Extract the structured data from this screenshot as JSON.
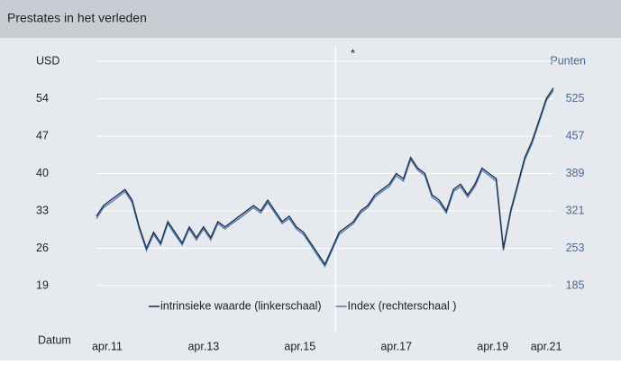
{
  "chart_data": {
    "type": "line",
    "title": "Prestates in het verleden",
    "y_label": "USD",
    "y2_label": "Punten",
    "x_label": "Datum",
    "x": [
      0,
      2,
      4,
      6,
      8,
      10,
      12,
      14,
      16,
      18,
      20,
      22,
      24,
      26,
      28,
      30,
      32,
      34,
      36,
      38,
      40,
      42,
      44,
      46,
      48,
      50,
      52,
      54,
      56,
      58,
      60,
      62,
      64,
      66,
      68,
      70,
      72,
      74,
      76,
      78,
      80,
      82,
      84,
      86,
      88,
      90,
      92,
      94,
      96,
      98,
      100,
      102,
      104,
      106,
      108,
      110,
      112,
      114,
      116,
      118,
      120,
      122,
      124,
      126,
      128
    ],
    "xlim": [
      0,
      128
    ],
    "xticks": [
      {
        "value": 3,
        "label": "apr.11"
      },
      {
        "value": 30,
        "label": "apr.13"
      },
      {
        "value": 57,
        "label": "apr.15"
      },
      {
        "value": 84,
        "label": "apr.17"
      },
      {
        "value": 111,
        "label": "apr.19"
      },
      {
        "value": 126,
        "label": "apr.21"
      }
    ],
    "ylim": [
      12,
      61
    ],
    "yticks": [
      19,
      26,
      33,
      40,
      47,
      54
    ],
    "y2lim": [
      117,
      593
    ],
    "y2ticks": [
      185,
      253,
      321,
      389,
      457,
      525
    ],
    "grid": true,
    "annotations": [
      {
        "text": "*",
        "x": 67
      }
    ],
    "series": [
      {
        "name": "intrinsieke waarde (linkerschaal)",
        "color": "#1c3557",
        "axis": "y",
        "values": [
          32,
          34,
          35,
          36,
          37,
          35,
          30,
          26,
          29,
          27,
          31,
          29,
          27,
          30,
          28,
          30,
          28,
          31,
          30,
          31,
          32,
          33,
          34,
          33,
          35,
          33,
          31,
          32,
          30,
          29,
          27,
          25,
          23,
          26,
          29,
          30,
          31,
          33,
          34,
          36,
          37,
          38,
          40,
          39,
          43,
          41,
          40,
          36,
          35,
          33,
          37,
          38,
          36,
          38,
          41,
          40,
          39,
          26,
          33,
          38,
          43,
          46,
          50,
          54,
          56
        ]
      },
      {
        "name": "Index (rechterschaal )",
        "color": "#5a7fab",
        "axis": "y2",
        "values": [
          307,
          327,
          336,
          346,
          356,
          336,
          288,
          249,
          278,
          259,
          298,
          278,
          259,
          288,
          268,
          288,
          268,
          298,
          288,
          298,
          307,
          317,
          327,
          317,
          336,
          317,
          298,
          307,
          288,
          278,
          259,
          239,
          220,
          249,
          278,
          288,
          298,
          317,
          327,
          346,
          356,
          365,
          385,
          375,
          414,
          395,
          385,
          346,
          336,
          317,
          356,
          365,
          346,
          365,
          395,
          385,
          375,
          249,
          317,
          365,
          414,
          443,
          482,
          521,
          540
        ]
      }
    ]
  }
}
